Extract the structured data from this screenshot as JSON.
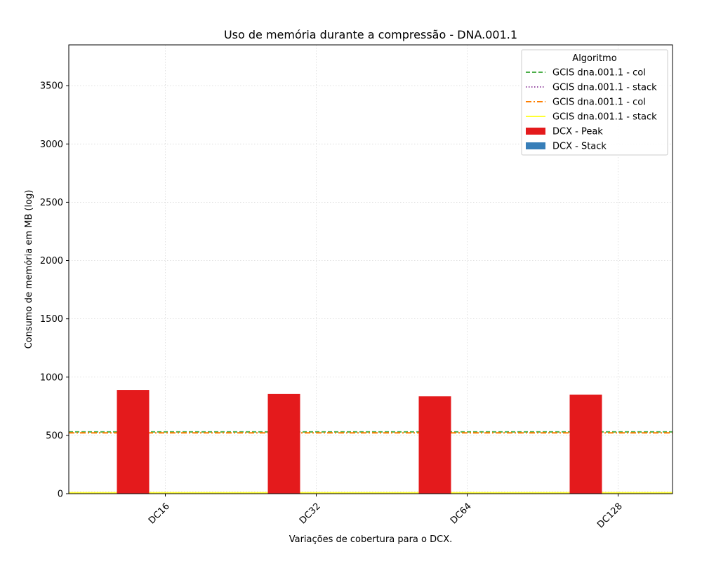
{
  "chart_data": {
    "type": "bar",
    "title": "Uso de memória durante a compressão -  DNA.001.1",
    "xlabel": "Variações de cobertura para o DCX.",
    "ylabel": "Consumo de memória em MB (log)",
    "categories": [
      "DC16",
      "DC32",
      "DC64",
      "DC128"
    ],
    "ylim": [
      0,
      3850
    ],
    "yticks": [
      0,
      500,
      1000,
      1500,
      2000,
      2500,
      3000,
      3500
    ],
    "grid": true,
    "legend_title": "Algoritmo",
    "legend_position": "top-right",
    "series": [
      {
        "name": "DCX - Peak",
        "kind": "bar",
        "color": "#e41a1c",
        "values": [
          890,
          855,
          835,
          850
        ]
      },
      {
        "name": "DCX - Stack",
        "kind": "bar",
        "color": "#377eb8",
        "values": [
          0,
          0,
          0,
          0
        ]
      }
    ],
    "reference_lines": [
      {
        "name": "GCIS dna.001.1 - col",
        "value": 530,
        "color": "#4daf4a",
        "style": "dashed"
      },
      {
        "name": "GCIS dna.001.1 - stack",
        "value": 10,
        "color": "#984ea3",
        "style": "dotted"
      },
      {
        "name": "GCIS dna.001.1 - col",
        "value": 522,
        "color": "#ff7f00",
        "style": "dashdot"
      },
      {
        "name": "GCIS dna.001.1 - stack",
        "value": 8,
        "color": "#ffff33",
        "style": "solid"
      }
    ]
  }
}
